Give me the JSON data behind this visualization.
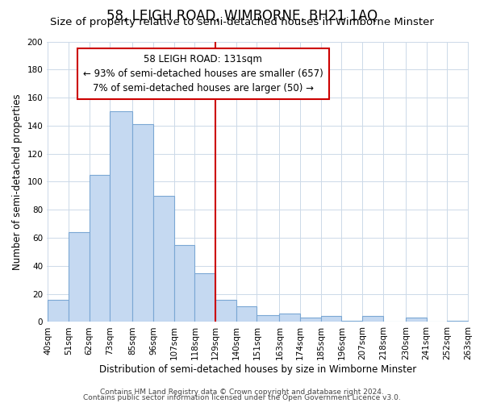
{
  "title": "58, LEIGH ROAD, WIMBORNE, BH21 1AQ",
  "subtitle": "Size of property relative to semi-detached houses in Wimborne Minster",
  "xlabel": "Distribution of semi-detached houses by size in Wimborne Minster",
  "ylabel": "Number of semi-detached properties",
  "bar_left_edges": [
    40,
    51,
    62,
    73,
    85,
    96,
    107,
    118,
    129,
    140,
    151,
    163,
    174,
    185,
    196,
    207,
    218,
    230,
    241,
    252
  ],
  "bar_widths": [
    11,
    11,
    11,
    12,
    11,
    11,
    11,
    11,
    11,
    11,
    12,
    11,
    11,
    11,
    11,
    11,
    12,
    11,
    11,
    11
  ],
  "bar_heights": [
    16,
    64,
    105,
    150,
    141,
    90,
    55,
    35,
    16,
    11,
    5,
    6,
    3,
    4,
    1,
    4,
    0,
    3,
    0,
    1
  ],
  "bar_color": "#c5d9f1",
  "bar_edge_color": "#7ba7d4",
  "tick_labels": [
    "40sqm",
    "51sqm",
    "62sqm",
    "73sqm",
    "85sqm",
    "96sqm",
    "107sqm",
    "118sqm",
    "129sqm",
    "140sqm",
    "151sqm",
    "163sqm",
    "174sqm",
    "185sqm",
    "196sqm",
    "207sqm",
    "218sqm",
    "230sqm",
    "241sqm",
    "252sqm",
    "263sqm"
  ],
  "property_line_x": 129,
  "annotation_title": "58 LEIGH ROAD: 131sqm",
  "annotation_line1": "← 93% of semi-detached houses are smaller (657)",
  "annotation_line2": "7% of semi-detached houses are larger (50) →",
  "ylim": [
    0,
    200
  ],
  "yticks": [
    0,
    20,
    40,
    60,
    80,
    100,
    120,
    140,
    160,
    180,
    200
  ],
  "footer1": "Contains HM Land Registry data © Crown copyright and database right 2024.",
  "footer2": "Contains public sector information licensed under the Open Government Licence v3.0.",
  "background_color": "#ffffff",
  "grid_color": "#ccd9e8",
  "title_fontsize": 12,
  "subtitle_fontsize": 9.5,
  "axis_label_fontsize": 8.5,
  "tick_fontsize": 7.5,
  "footer_fontsize": 6.5,
  "annot_fontsize": 8.5
}
